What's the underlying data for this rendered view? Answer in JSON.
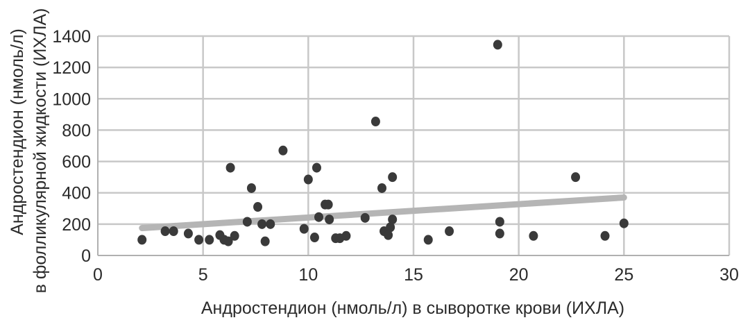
{
  "chart_data": {
    "type": "scatter",
    "xlabel": "Андростендион (нмоль/л) в сыворотке крови (ИХЛА)",
    "ylabel_lines": [
      "Андростендион (нмоль/л)",
      "в фолликулярной жидкости (ИХЛА)"
    ],
    "xlim": [
      0,
      30
    ],
    "ylim": [
      0,
      1400
    ],
    "x_ticks": [
      0,
      5,
      10,
      15,
      20,
      25,
      30
    ],
    "y_ticks": [
      0,
      200,
      400,
      600,
      800,
      1000,
      1200,
      1400
    ],
    "x_tick_labels": [
      "0",
      "5",
      "10",
      "15",
      "20",
      "25",
      "30"
    ],
    "y_tick_labels": [
      "0",
      "200",
      "400",
      "600",
      "800",
      "1000",
      "1200",
      "1400"
    ],
    "grid": true,
    "legend": "none",
    "colors": {
      "points": "#3a3a3a",
      "trendline": "#b5b5b5",
      "grid": "#c8c8c8"
    },
    "points": [
      {
        "x": 2.1,
        "y": 100
      },
      {
        "x": 3.2,
        "y": 155
      },
      {
        "x": 3.6,
        "y": 155
      },
      {
        "x": 4.3,
        "y": 140
      },
      {
        "x": 4.8,
        "y": 100
      },
      {
        "x": 5.3,
        "y": 100
      },
      {
        "x": 5.8,
        "y": 130
      },
      {
        "x": 6.0,
        "y": 100
      },
      {
        "x": 6.2,
        "y": 90
      },
      {
        "x": 6.5,
        "y": 125
      },
      {
        "x": 6.3,
        "y": 560
      },
      {
        "x": 7.1,
        "y": 215
      },
      {
        "x": 7.3,
        "y": 430
      },
      {
        "x": 7.6,
        "y": 310
      },
      {
        "x": 7.8,
        "y": 200
      },
      {
        "x": 7.95,
        "y": 90
      },
      {
        "x": 8.2,
        "y": 200
      },
      {
        "x": 8.8,
        "y": 670
      },
      {
        "x": 9.8,
        "y": 170
      },
      {
        "x": 10.0,
        "y": 485
      },
      {
        "x": 10.3,
        "y": 115
      },
      {
        "x": 10.4,
        "y": 560
      },
      {
        "x": 10.5,
        "y": 245
      },
      {
        "x": 10.8,
        "y": 325
      },
      {
        "x": 10.95,
        "y": 325
      },
      {
        "x": 11.0,
        "y": 230
      },
      {
        "x": 11.3,
        "y": 110
      },
      {
        "x": 11.5,
        "y": 110
      },
      {
        "x": 11.8,
        "y": 125
      },
      {
        "x": 12.7,
        "y": 240
      },
      {
        "x": 13.2,
        "y": 855
      },
      {
        "x": 13.5,
        "y": 430
      },
      {
        "x": 13.6,
        "y": 155
      },
      {
        "x": 13.8,
        "y": 130
      },
      {
        "x": 13.9,
        "y": 180
      },
      {
        "x": 14.0,
        "y": 230
      },
      {
        "x": 14.0,
        "y": 500
      },
      {
        "x": 15.7,
        "y": 100
      },
      {
        "x": 16.7,
        "y": 155
      },
      {
        "x": 19.0,
        "y": 1345
      },
      {
        "x": 19.1,
        "y": 215
      },
      {
        "x": 19.1,
        "y": 140
      },
      {
        "x": 20.7,
        "y": 125
      },
      {
        "x": 22.7,
        "y": 500
      },
      {
        "x": 24.1,
        "y": 125
      },
      {
        "x": 25.0,
        "y": 205
      }
    ],
    "trendline": {
      "x": [
        2.1,
        25.0
      ],
      "y": [
        175,
        370
      ]
    }
  }
}
